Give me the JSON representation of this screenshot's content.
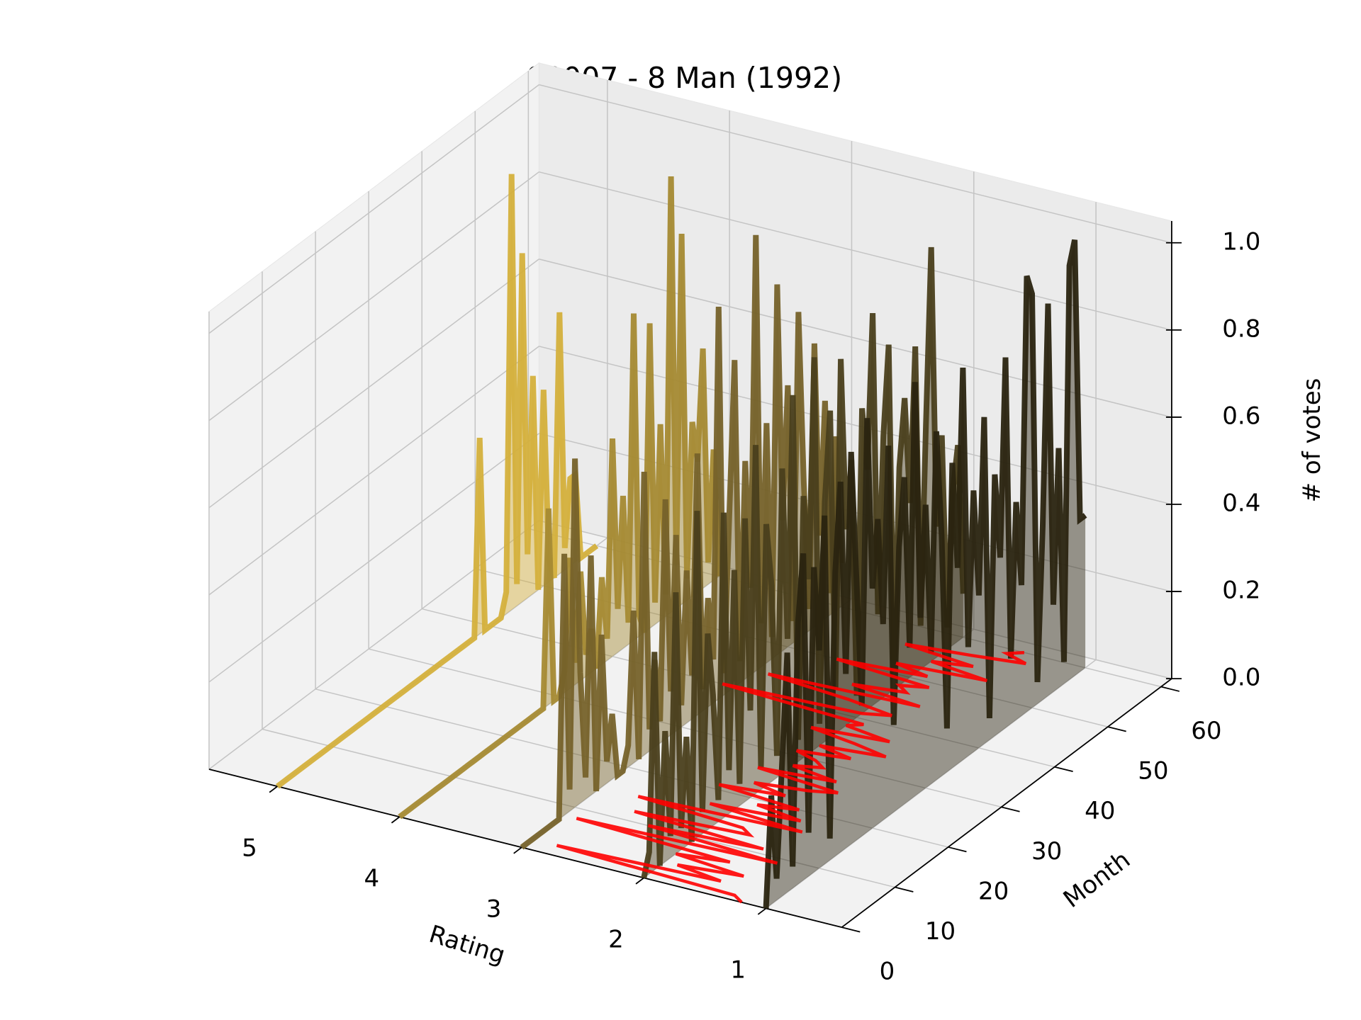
{
  "chart_data": {
    "type": "line3d",
    "title": "00007 - 8 Man (1992)",
    "xlabel": "Rating",
    "ylabel": "Month",
    "zlabel": "# of votes",
    "xlim": [
      0.38,
      5.56
    ],
    "ylim": [
      0,
      62
    ],
    "zlim": [
      0,
      1.05
    ],
    "xticks": [
      1,
      2,
      3,
      4,
      5
    ],
    "yticks": [
      0,
      10,
      20,
      30,
      40,
      50,
      60
    ],
    "zticks": [
      {
        "value": 0,
        "label": "0.0"
      },
      0.2,
      0.4,
      0.6,
      0.8,
      {
        "value": 1,
        "label": "1.0"
      }
    ],
    "grid": true,
    "x": [
      0,
      1,
      2,
      3,
      4,
      5,
      6,
      7,
      8,
      9,
      10,
      11,
      12,
      13,
      14,
      15,
      16,
      17,
      18,
      19,
      20,
      21,
      22,
      23,
      24,
      25,
      26,
      27,
      28,
      29,
      30,
      31,
      32,
      33,
      34,
      35,
      36,
      37,
      38,
      39,
      40,
      41,
      42,
      43,
      44,
      45,
      46,
      47,
      48,
      49,
      50,
      51,
      52,
      53,
      54,
      55,
      56,
      57,
      58,
      59,
      60
    ],
    "series": [
      {
        "rating": 5,
        "color": "#d4b03c",
        "values": [
          0,
          0,
          0,
          0,
          0,
          0,
          0,
          0,
          0,
          0,
          0,
          0,
          0,
          0,
          0,
          0,
          0,
          0,
          0,
          0,
          0,
          0,
          0,
          0,
          0,
          0,
          0,
          0,
          0,
          0,
          0,
          0,
          0,
          0,
          0,
          0,
          0,
          0,
          0.45,
          0,
          0,
          0,
          0,
          0.05,
          1.0,
          0.05,
          0.8,
          0.1,
          0.5,
          0,
          0.45,
          0.05,
          0,
          0.6,
          0.05,
          0.2,
          0.2,
          0,
          0,
          0,
          0
        ]
      },
      {
        "rating": 4,
        "color": "#a58a33",
        "values": [
          0,
          0,
          0,
          0,
          0,
          0,
          0,
          0,
          0,
          0,
          0,
          0,
          0,
          0,
          0,
          0,
          0,
          0,
          0,
          0,
          0,
          0,
          0,
          0,
          0,
          0,
          0,
          0,
          0.45,
          0,
          0,
          0.05,
          0.3,
          0.05,
          0.25,
          0.05,
          0.1,
          0,
          0.2,
          0.05,
          0.5,
          0.1,
          0.35,
          0.05,
          0.75,
          0.05,
          0,
          0.7,
          0.05,
          0.45,
          0.05,
          1.0,
          0.1,
          0.85,
          0.05,
          0.4,
          0.3,
          0.55,
          0.05,
          0.3,
          0
        ]
      },
      {
        "rating": 3,
        "color": "#76622a",
        "values": [
          0,
          0,
          0,
          0,
          0,
          0,
          0,
          0,
          0.6,
          0.05,
          0.8,
          0.3,
          0.05,
          0.55,
          0,
          0.35,
          0.05,
          0.15,
          0,
          0,
          0.05,
          0.35,
          0,
          0.65,
          0.05,
          0.2,
          0.05,
          0.55,
          0.1,
          0.45,
          0.05,
          0.35,
          0.1,
          0.6,
          0.05,
          0.25,
          0.1,
          0.9,
          0.05,
          0.4,
          0.75,
          0.05,
          0.5,
          0.2,
          1.0,
          0.1,
          0.55,
          0.05,
          0.85,
          0.3,
          0.6,
          0.05,
          0.75,
          0.35,
          0.05,
          0.65,
          0.2,
          0.5,
          0.05,
          0.4,
          0.1
        ]
      },
      {
        "rating": 2,
        "color": "#4a3f1c",
        "values": [
          0,
          0.05,
          0.5,
          0,
          0.3,
          0.05,
          0.6,
          0.05,
          0.25,
          0,
          0.75,
          0.05,
          0.45,
          0.3,
          0.05,
          0.7,
          0.1,
          0.55,
          0.05,
          0.65,
          0.2,
          0.8,
          0.05,
          0.6,
          0.45,
          0.05,
          0.7,
          0.3,
          0.85,
          0.05,
          0.6,
          0.4,
          0.9,
          0.05,
          0.55,
          0.75,
          0.1,
          0.85,
          0.45,
          0.6,
          0.05,
          0.7,
          0.55,
          0.9,
          0.2,
          0.6,
          0.8,
          0.05,
          0.5,
          0.65,
          0.4,
          0.75,
          0.1,
          0.55,
          0.95,
          0.3,
          0.5,
          0.05,
          0.35,
          0.45,
          0.1
        ]
      },
      {
        "rating": 1,
        "color": "#2a2410",
        "values": [
          0,
          0.25,
          0.05,
          0.3,
          0.55,
          0.05,
          0.6,
          0.75,
          0.1,
          0.7,
          0.5,
          0.8,
          0.05,
          0.65,
          0.85,
          0.4,
          0.9,
          0.6,
          0.3,
          0.95,
          0.55,
          0.7,
          0.45,
          0.85,
          0.2,
          0.6,
          0.75,
          0.35,
          0.95,
          0.4,
          0.65,
          0.3,
          0.8,
          0.55,
          0.1,
          0.7,
          0.45,
          0.9,
          0.25,
          0.6,
          0.35,
          0.75,
          0.05,
          0.6,
          0.4,
          0.85,
          0.15,
          0.5,
          0.3,
          1.0,
          0.95,
          0.05,
          0.4,
          0.9,
          0.2,
          0.55,
          0.05,
          0.95,
          1.0,
          0.35,
          0.35
        ]
      }
    ],
    "mean_line": {
      "color": "#ff0000",
      "values": [
        1.2,
        1.3,
        2.8,
        1.5,
        1.9,
        1.4,
        2.0,
        1.6,
        2.9,
        1.3,
        2.4,
        1.5,
        2.6,
        1.7,
        1.8,
        2.7,
        1.4,
        2.2,
        1.5,
        1.9,
        1.6,
        2.3,
        1.8,
        2.1,
        1.7,
        1.5,
        2.2,
        1.6,
        2.0,
        1.8,
        1.9,
        2.1,
        1.7,
        2.0,
        1.5,
        1.8,
        2.2,
        1.6,
        2.0,
        1.9,
        3.1,
        2.0,
        1.8,
        2.2,
        2.9,
        1.7,
        2.3,
        1.9,
        2.0,
        1.8,
        2.6,
        1.9,
        2.2,
        1.5,
        2.0,
        1.7,
        2.3,
        1.8,
        1.4,
        1.6,
        1.5
      ]
    }
  }
}
